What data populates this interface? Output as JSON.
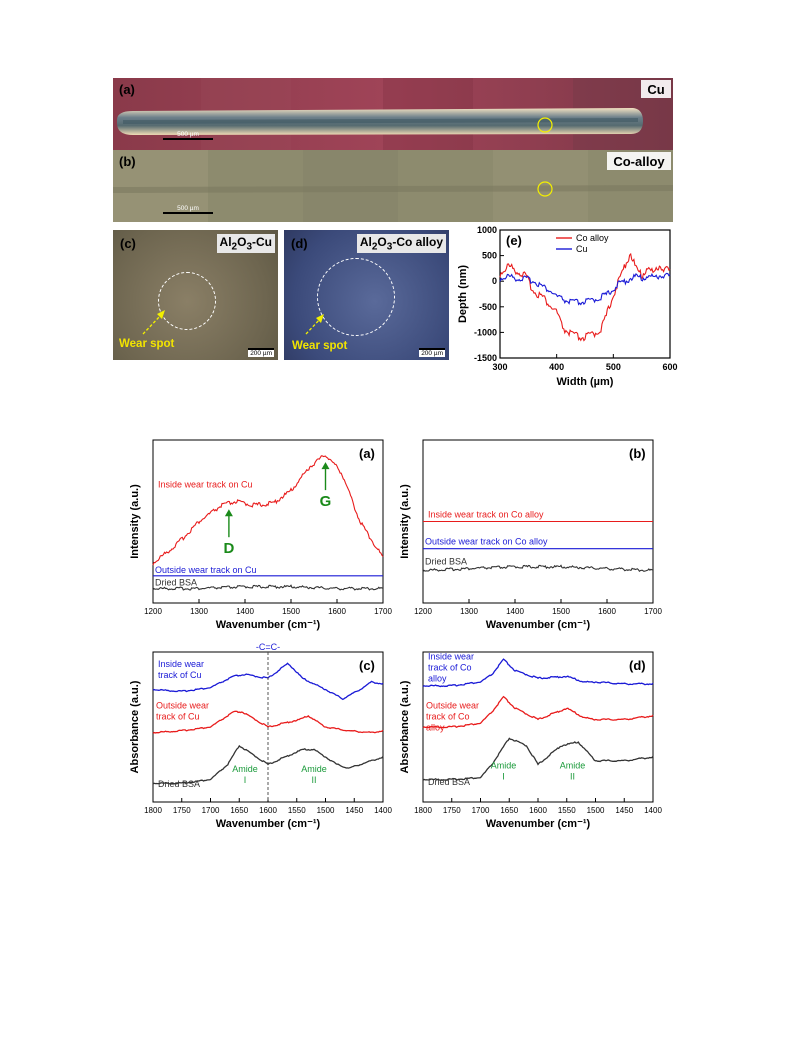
{
  "fig1": {
    "a": {
      "tag": "(a)",
      "material": "Cu",
      "scalebar": "500 µm"
    },
    "b": {
      "tag": "(b)",
      "material": "Co-alloy",
      "scalebar": "500 µm"
    },
    "c": {
      "tag": "(c)",
      "material_html": "Al<sub>2</sub>O<sub>3</sub>-Cu",
      "wear_label": "Wear spot",
      "scalebar": "200 µm"
    },
    "d": {
      "tag": "(d)",
      "material_html": "Al<sub>2</sub>O<sub>3</sub>-Co alloy",
      "wear_label": "Wear spot",
      "scalebar": "200 µm"
    },
    "e": {
      "tag": "(e)",
      "xlabel": "Width (µm)",
      "ylabel": "Depth (nm)",
      "xlim": [
        300,
        600
      ],
      "ylim": [
        -1500,
        1000
      ],
      "xticks": [
        "300",
        "400",
        "500",
        "600"
      ],
      "yticks": [
        "1000",
        "500",
        "0",
        "-500",
        "-1000",
        "-1500"
      ],
      "legend": [
        "Co alloy",
        "Cu"
      ],
      "colors": [
        "#e81c1c",
        "#1a1ad6"
      ]
    }
  },
  "chart_data": [
    {
      "type": "line",
      "panel": "(e)",
      "xlabel": "Width (µm)",
      "ylabel": "Depth (nm)",
      "xlim": [
        300,
        600
      ],
      "ylim": [
        -1500,
        1000
      ],
      "legend_position": "top-left",
      "series": [
        {
          "name": "Co alloy",
          "color": "#e81c1c",
          "x": [
            300,
            315,
            330,
            345,
            360,
            375,
            390,
            400,
            410,
            420,
            430,
            440,
            450,
            460,
            470,
            480,
            490,
            500,
            510,
            520,
            530,
            540,
            550,
            560,
            570,
            580,
            590,
            600
          ],
          "y": [
            150,
            300,
            200,
            100,
            -200,
            -300,
            -500,
            -600,
            -900,
            -1000,
            -1050,
            -1100,
            -1100,
            -1050,
            -1000,
            -900,
            -600,
            -250,
            0,
            300,
            550,
            250,
            100,
            280,
            150,
            300,
            250,
            200
          ]
        },
        {
          "name": "Cu",
          "color": "#1a1ad6",
          "x": [
            300,
            315,
            330,
            345,
            360,
            375,
            390,
            400,
            410,
            420,
            430,
            440,
            450,
            460,
            470,
            480,
            490,
            500,
            510,
            520,
            530,
            540,
            550,
            560,
            570,
            580,
            590,
            600
          ],
          "y": [
            50,
            100,
            50,
            50,
            0,
            -100,
            -200,
            -300,
            -350,
            -400,
            -400,
            -420,
            -400,
            -380,
            -350,
            -300,
            -250,
            -150,
            -50,
            0,
            50,
            100,
            50,
            100,
            80,
            100,
            120,
            100
          ]
        }
      ]
    },
    {
      "type": "line",
      "panel": "(a)",
      "xlabel": "Wavenumber (cm⁻¹)",
      "ylabel": "Intensity (a.u.)",
      "xlim": [
        1200,
        1700
      ],
      "xticks": [
        "1200",
        "1300",
        "1400",
        "1500",
        "1600",
        "1700"
      ],
      "peaks": [
        "D",
        "G"
      ],
      "series": [
        {
          "name": "Inside wear track on Cu",
          "color": "#e81c1c",
          "x": [
            1200,
            1250,
            1300,
            1350,
            1380,
            1420,
            1460,
            1500,
            1540,
            1575,
            1610,
            1650,
            1700
          ],
          "y": [
            0.52,
            0.62,
            0.75,
            0.84,
            0.86,
            0.84,
            0.85,
            0.92,
            1.05,
            1.12,
            1.02,
            0.75,
            0.55
          ]
        },
        {
          "name": "Outside wear track on Cu",
          "color": "#1a1ad6",
          "x": [
            1200,
            1700
          ],
          "y": [
            0.45,
            0.45
          ]
        },
        {
          "name": "Dried BSA",
          "color": "#333333",
          "x": [
            1200,
            1300,
            1400,
            1500,
            1600,
            1700
          ],
          "y": [
            0.38,
            0.38,
            0.39,
            0.39,
            0.38,
            0.38
          ]
        }
      ]
    },
    {
      "type": "line",
      "panel": "(b)",
      "xlabel": "Wavenumber (cm⁻¹)",
      "ylabel": "Intensity (a.u.)",
      "xlim": [
        1200,
        1700
      ],
      "xticks": [
        "1200",
        "1300",
        "1400",
        "1500",
        "1600",
        "1700"
      ],
      "series": [
        {
          "name": "Inside wear track on Co alloy",
          "color": "#e81c1c",
          "x": [
            1200,
            1700
          ],
          "y": [
            0.75,
            0.75
          ]
        },
        {
          "name": "Outside wear track on Co alloy",
          "color": "#1a1ad6",
          "x": [
            1200,
            1700
          ],
          "y": [
            0.6,
            0.6
          ]
        },
        {
          "name": "Dried BSA",
          "color": "#333333",
          "x": [
            1200,
            1300,
            1400,
            1500,
            1600,
            1700
          ],
          "y": [
            0.48,
            0.49,
            0.5,
            0.5,
            0.49,
            0.48
          ]
        }
      ]
    },
    {
      "type": "line",
      "panel": "(c)",
      "xlabel": "Wavenumber (cm⁻¹)",
      "ylabel": "Absorbance (a.u.)",
      "xlim": [
        1800,
        1400
      ],
      "xticks": [
        "1800",
        "1750",
        "1700",
        "1650",
        "1600",
        "1550",
        "1500",
        "1450",
        "1400"
      ],
      "annotations": [
        "-C=C-",
        "Amide I",
        "Amide II"
      ],
      "series": [
        {
          "name": "Inside wear track of Cu",
          "color": "#1a1ad6",
          "x": [
            1800,
            1750,
            1700,
            1660,
            1640,
            1600,
            1565,
            1540,
            1500,
            1470,
            1440,
            1420,
            1400
          ],
          "y": [
            0.8,
            0.79,
            0.81,
            0.87,
            0.88,
            0.86,
            0.94,
            0.86,
            0.8,
            0.75,
            0.8,
            0.84,
            0.83
          ]
        },
        {
          "name": "Outside wear track of Cu",
          "color": "#e81c1c",
          "x": [
            1800,
            1750,
            1700,
            1660,
            1645,
            1600,
            1545,
            1530,
            1500,
            1460,
            1420,
            1400
          ],
          "y": [
            0.57,
            0.58,
            0.6,
            0.68,
            0.68,
            0.6,
            0.64,
            0.66,
            0.6,
            0.58,
            0.57,
            0.58
          ]
        },
        {
          "name": "Dried BSA",
          "color": "#333333",
          "x": [
            1800,
            1750,
            1700,
            1670,
            1650,
            1600,
            1540,
            1520,
            1480,
            1460,
            1420,
            1400
          ],
          "y": [
            0.3,
            0.3,
            0.32,
            0.4,
            0.5,
            0.4,
            0.48,
            0.48,
            0.4,
            0.38,
            0.42,
            0.44
          ]
        }
      ]
    },
    {
      "type": "line",
      "panel": "(d)",
      "xlabel": "Wavenumber (cm⁻¹)",
      "ylabel": "Absorbance (a.u.)",
      "xlim": [
        1800,
        1400
      ],
      "xticks": [
        "1800",
        "1750",
        "1700",
        "1650",
        "1600",
        "1550",
        "1500",
        "1450",
        "1400"
      ],
      "annotations": [
        "Amide I",
        "Amide II"
      ],
      "series": [
        {
          "name": "Inside wear track of Co alloy",
          "color": "#1a1ad6",
          "x": [
            1800,
            1750,
            1700,
            1680,
            1660,
            1640,
            1600,
            1550,
            1520,
            1500,
            1450,
            1400
          ],
          "y": [
            0.82,
            0.82,
            0.84,
            0.88,
            0.96,
            0.9,
            0.86,
            0.87,
            0.84,
            0.84,
            0.83,
            0.83
          ]
        },
        {
          "name": "Outside wear track of Co alloy",
          "color": "#e81c1c",
          "x": [
            1800,
            1750,
            1700,
            1680,
            1660,
            1640,
            1600,
            1550,
            1520,
            1500,
            1450,
            1400
          ],
          "y": [
            0.6,
            0.6,
            0.62,
            0.68,
            0.76,
            0.7,
            0.64,
            0.7,
            0.65,
            0.64,
            0.64,
            0.66
          ]
        },
        {
          "name": "Dried BSA",
          "color": "#333333",
          "x": [
            1800,
            1750,
            1700,
            1680,
            1650,
            1620,
            1600,
            1560,
            1530,
            1500,
            1450,
            1400
          ],
          "y": [
            0.32,
            0.32,
            0.33,
            0.4,
            0.54,
            0.5,
            0.4,
            0.5,
            0.52,
            0.42,
            0.42,
            0.44
          ]
        }
      ]
    }
  ],
  "fig2": {
    "a": {
      "tag": "(a)",
      "labels": [
        "Inside wear track on Cu",
        "Outside wear track on Cu",
        "Dried BSA"
      ],
      "peak_d": "D",
      "peak_g": "G"
    },
    "b": {
      "tag": "(b)",
      "labels": [
        "Inside wear track on Co alloy",
        "Outside wear track on Co alloy",
        "Dried BSA"
      ]
    },
    "c": {
      "tag": "(c)",
      "labels": [
        "Inside wear\ntrack of Cu",
        "Outside wear\ntrack of Cu",
        "Dried BSA"
      ],
      "cc": "-C=C-",
      "amide1": "Amide\nI",
      "amide2": "Amide\nII"
    },
    "d": {
      "tag": "(d)",
      "labels": [
        "Inside wear\ntrack of Co\nalloy",
        "Outside wear\ntrack of Co\nalloy",
        "Dried BSA"
      ],
      "amide1": "Amide\nI",
      "amide2": "Amide\nII"
    },
    "raman_xlabel": "Wavenumber (cm⁻¹)",
    "raman_ylabel": "Intensity (a.u.)",
    "ir_xlabel": "Wavenumber (cm⁻¹)",
    "ir_ylabel": "Absorbance (a.u.)"
  }
}
